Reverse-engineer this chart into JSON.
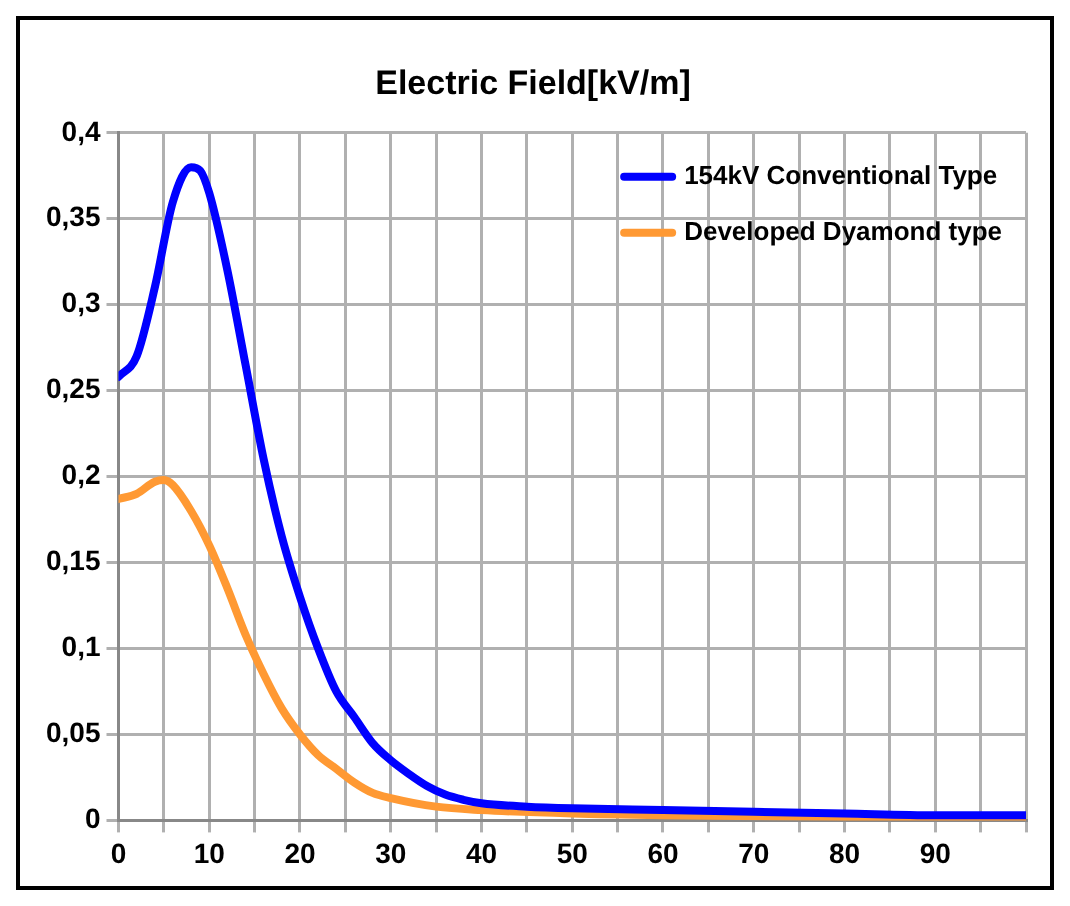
{
  "chart_data": {
    "type": "line",
    "title": "Electric Field[kV/m]",
    "xlim": [
      0,
      100
    ],
    "xticks": [
      0,
      {
        "value": 5,
        "label": null
      },
      10,
      {
        "value": 15,
        "label": null
      },
      20,
      {
        "value": 25,
        "label": null
      },
      30,
      {
        "value": 35,
        "label": null
      },
      40,
      {
        "value": 45,
        "label": null
      },
      50,
      {
        "value": 55,
        "label": null
      },
      60,
      {
        "value": 65,
        "label": null
      },
      70,
      {
        "value": 75,
        "label": null
      },
      80,
      {
        "value": 85,
        "label": null
      },
      90,
      {
        "value": 95,
        "label": null
      },
      {
        "value": 100,
        "label": null
      }
    ],
    "ylim": [
      0,
      0.4
    ],
    "yticks": [
      0,
      {
        "value": 0.05,
        "label": "0,05"
      },
      {
        "value": 0.1,
        "label": "0,1"
      },
      {
        "value": 0.15,
        "label": "0,15"
      },
      {
        "value": 0.2,
        "label": "0,2"
      },
      {
        "value": 0.25,
        "label": "0,25"
      },
      {
        "value": 0.3,
        "label": "0,3"
      },
      {
        "value": 0.35,
        "label": "0,35"
      },
      {
        "value": 0.4,
        "label": "0,4"
      }
    ],
    "grid": true,
    "legend": "top right",
    "marker": "none",
    "line_style": "solid",
    "series": [
      {
        "name": "154kV Conventional Type",
        "color": "#0000ff",
        "x": [
          0,
          2,
          4,
          6,
          8,
          9,
          10,
          12,
          14,
          16,
          18,
          20,
          22,
          24,
          26,
          28,
          30,
          32,
          34,
          36,
          38,
          40,
          45,
          50,
          60,
          70,
          80,
          90,
          100
        ],
        "values": [
          0.258,
          0.27,
          0.31,
          0.36,
          0.38,
          0.378,
          0.365,
          0.32,
          0.265,
          0.21,
          0.165,
          0.13,
          0.1,
          0.075,
          0.06,
          0.045,
          0.035,
          0.027,
          0.02,
          0.015,
          0.012,
          0.01,
          0.008,
          0.007,
          0.006,
          0.005,
          0.004,
          0.003,
          0.003
        ]
      },
      {
        "name": "Developed Dyamond type",
        "color": "#ff9933",
        "x": [
          0,
          2,
          4,
          5,
          6,
          8,
          10,
          12,
          14,
          16,
          18,
          20,
          22,
          24,
          26,
          28,
          30,
          35,
          40,
          50,
          60,
          80,
          100
        ],
        "values": [
          0.187,
          0.19,
          0.197,
          0.198,
          0.195,
          0.18,
          0.16,
          0.135,
          0.108,
          0.085,
          0.065,
          0.05,
          0.038,
          0.03,
          0.022,
          0.016,
          0.013,
          0.008,
          0.006,
          0.004,
          0.003,
          0.002,
          0.002
        ]
      }
    ]
  }
}
